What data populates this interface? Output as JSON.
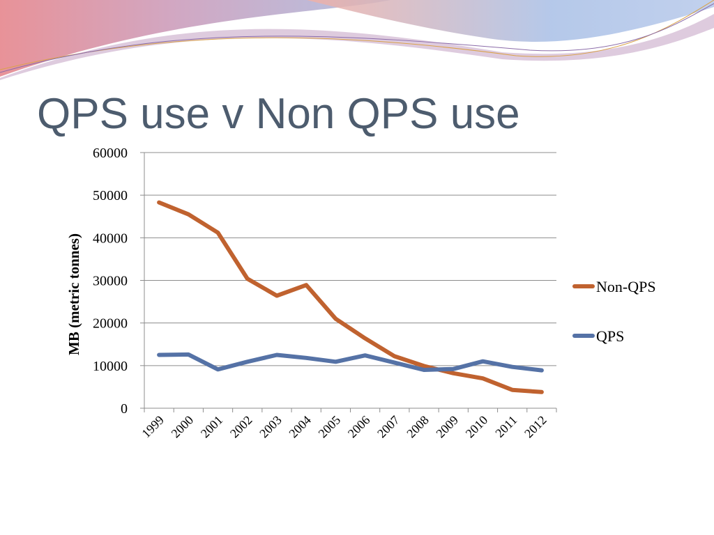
{
  "slide": {
    "title": "QPS use v Non QPS use"
  },
  "colors": {
    "non_qps": "#c0622f",
    "qps": "#5572a6",
    "title": "#4d5c6e"
  },
  "chart_data": {
    "type": "line",
    "title": "",
    "xlabel": "",
    "ylabel": "MB (metric tonnes)",
    "categories": [
      "1999",
      "2000",
      "2001",
      "2002",
      "2003",
      "2004",
      "2005",
      "2006",
      "2007",
      "2008",
      "2009",
      "2010",
      "2011",
      "2012"
    ],
    "yticks": [
      "0",
      "10000",
      "20000",
      "30000",
      "40000",
      "50000",
      "60000"
    ],
    "ylim": [
      0,
      60000
    ],
    "grid": true,
    "legend_position": "right",
    "series": [
      {
        "name": "Non-QPS",
        "color": "#c0622f",
        "values": [
          48300,
          45500,
          41200,
          30400,
          26400,
          28900,
          21000,
          16400,
          12200,
          9900,
          8200,
          7000,
          4300,
          3800
        ]
      },
      {
        "name": "QPS",
        "color": "#5572a6",
        "values": [
          12500,
          12600,
          9100,
          10900,
          12500,
          11800,
          10900,
          12400,
          10700,
          9000,
          9200,
          11000,
          9700,
          8900
        ]
      }
    ]
  }
}
